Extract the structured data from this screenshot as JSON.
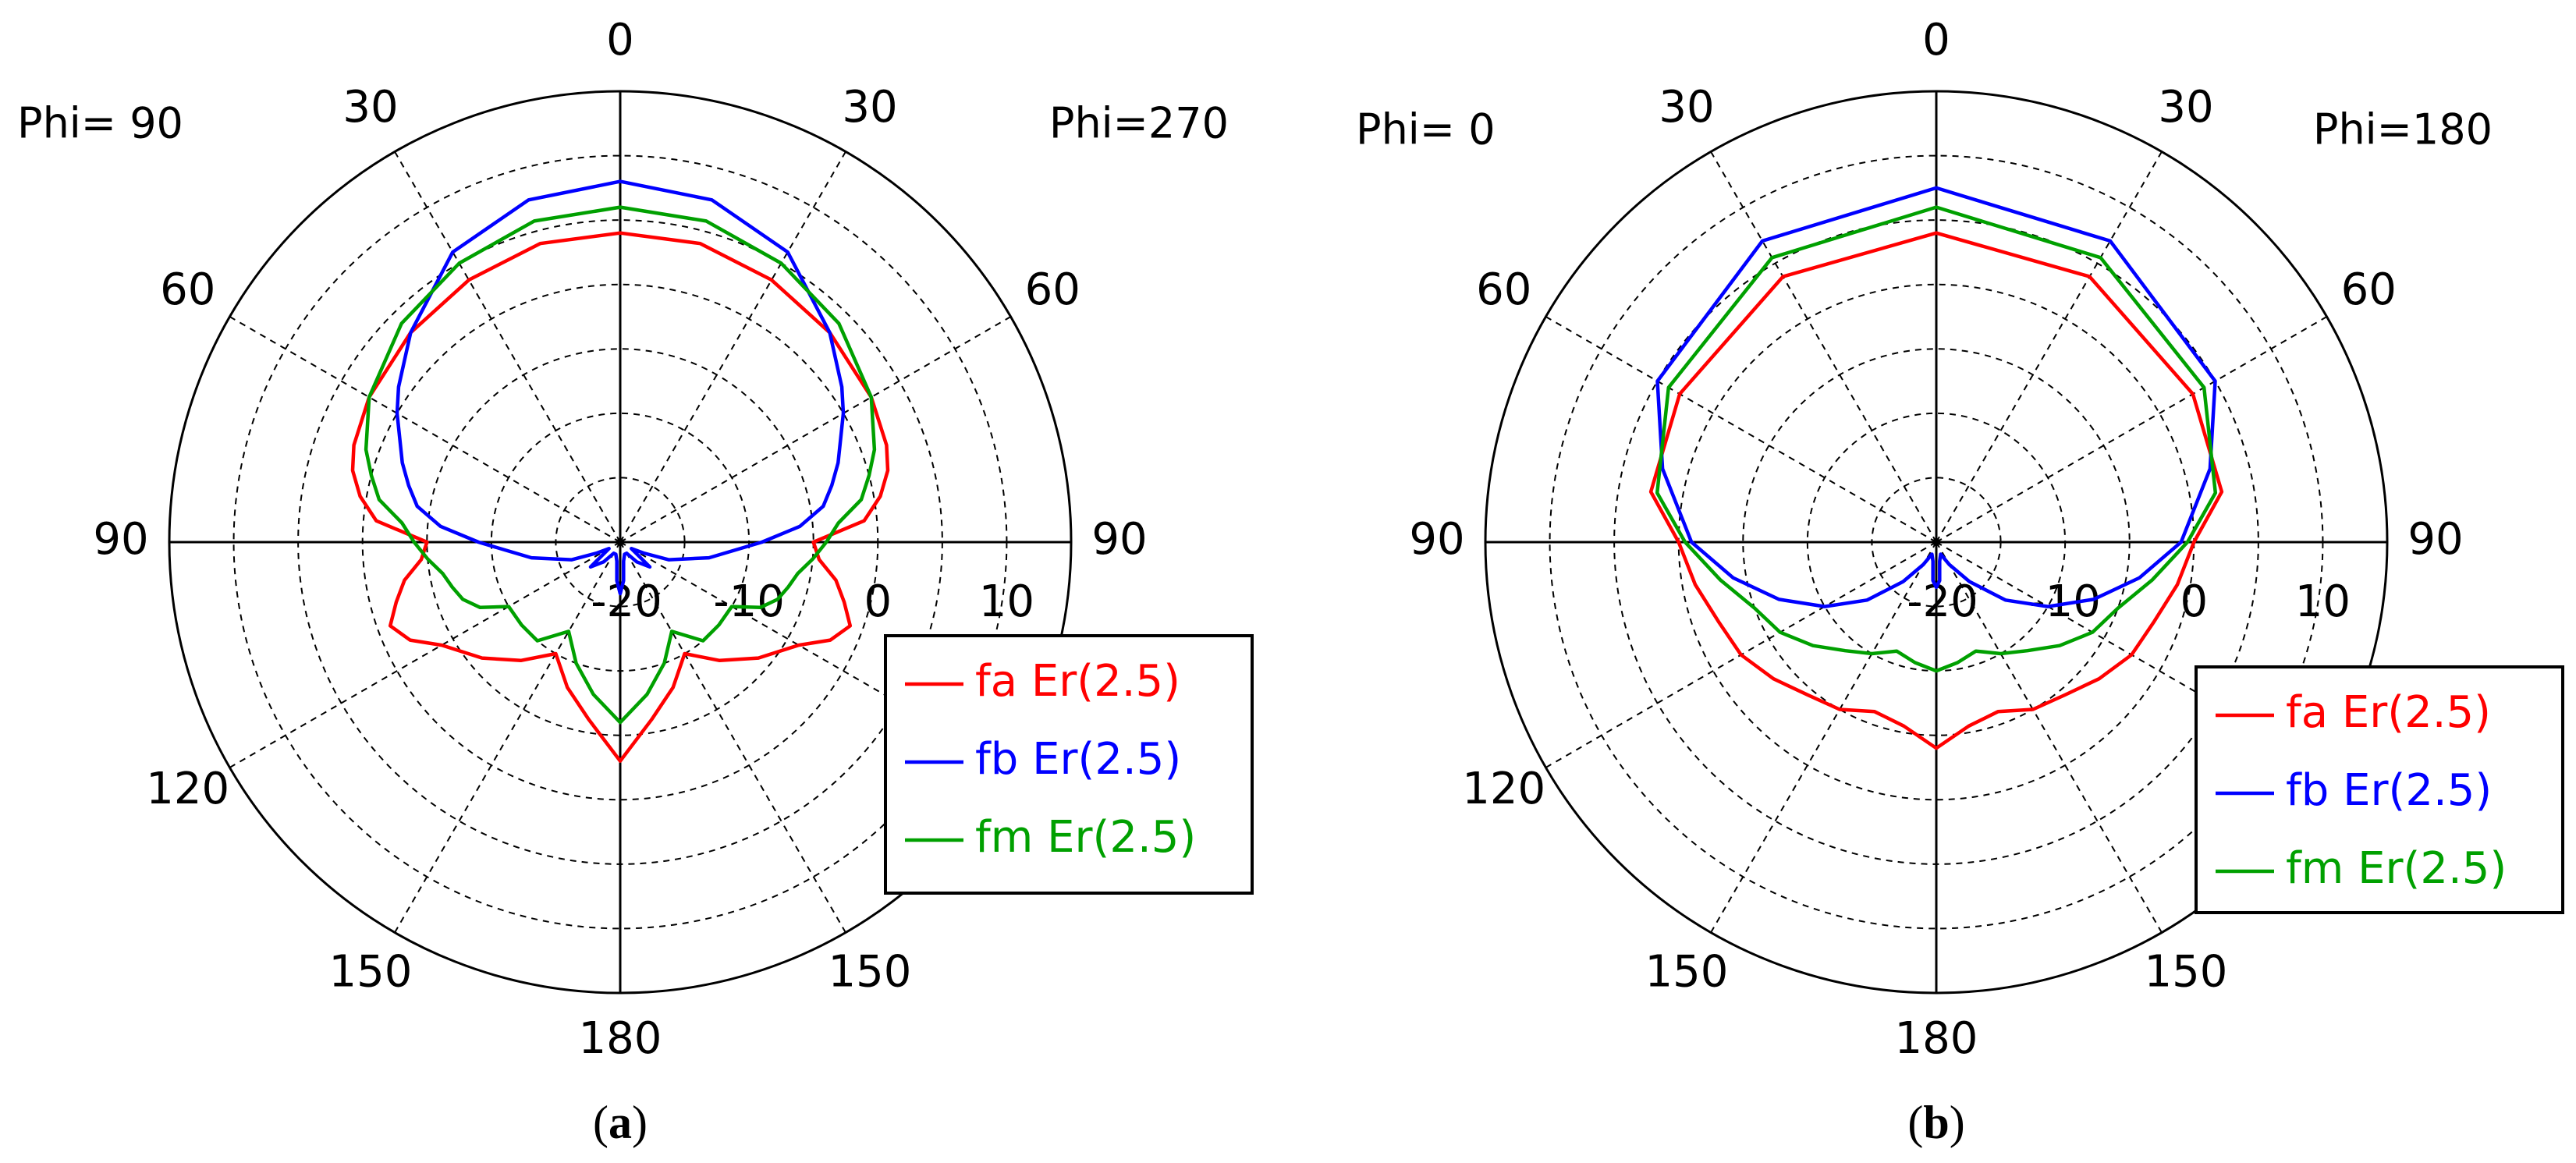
{
  "colors": {
    "fa": "#ff0000",
    "fb": "#0000ff",
    "fm": "#00a000",
    "grid": "#000000"
  },
  "chart_data": [
    {
      "type": "polar",
      "caption_paren_left": "(",
      "caption_letter": "a",
      "caption_paren_right": ")",
      "phi_left": "Phi= 90",
      "phi_right": "Phi=270",
      "angle_labels": {
        "top": "0",
        "left30": "30",
        "right30": "30",
        "left60": "60",
        "right60": "60",
        "left90": "90",
        "right90": "90",
        "left120": "120",
        "left150": "150",
        "right150": "150",
        "bottom": "180"
      },
      "radial_tick_labels": [
        "-20",
        "-10",
        "0",
        "10"
      ],
      "radial_range": [
        -20,
        15
      ],
      "grid": true,
      "legend_position": "bottom-right",
      "series": [
        {
          "name": "fa Er(2.5)",
          "color_key": "fa",
          "theta": [
            0,
            15,
            30,
            45,
            60,
            70,
            75,
            80,
            85,
            90,
            95,
            100,
            105,
            110,
            115,
            120,
            130,
            140,
            150,
            160,
            170,
            180
          ],
          "values": [
            4,
            4,
            3.5,
            3,
            2.5,
            2,
            1.5,
            0.5,
            -1,
            -5,
            -4.5,
            -3,
            -2,
            -1,
            -2,
            -4,
            -6,
            -8,
            -10,
            -8,
            -6,
            -3
          ]
        },
        {
          "name": "fb Er(2.5)",
          "color_key": "fb",
          "theta": [
            0,
            15,
            30,
            45,
            55,
            60,
            70,
            75,
            80,
            85,
            90,
            100,
            110,
            115,
            120,
            130,
            140,
            150,
            160,
            170,
            175,
            180
          ],
          "values": [
            8,
            7.5,
            6,
            3,
            1,
            0,
            -2,
            -3,
            -4,
            -6,
            -9,
            -13,
            -16,
            -18,
            -19,
            -17,
            -18,
            -19,
            -19,
            -18.5,
            -17,
            -16
          ]
        },
        {
          "name": "fm Er(2.5)",
          "color_key": "fm",
          "theta": [
            0,
            15,
            30,
            45,
            60,
            70,
            75,
            80,
            85,
            90,
            95,
            100,
            105,
            110,
            115,
            120,
            130,
            140,
            150,
            160,
            170,
            180
          ],
          "values": [
            6,
            5.8,
            5,
            4,
            2.5,
            1,
            0,
            -1,
            -3,
            -4,
            -5,
            -6,
            -6.5,
            -7,
            -8,
            -10,
            -10,
            -10,
            -12,
            -10,
            -8,
            -6
          ]
        }
      ]
    },
    {
      "type": "polar",
      "caption_paren_left": "(",
      "caption_letter": "b",
      "caption_paren_right": ")",
      "phi_left": "Phi=  0",
      "phi_right": "Phi=180",
      "angle_labels": {
        "top": "0",
        "left30": "30",
        "right30": "30",
        "left60": "60",
        "right60": "60",
        "left90": "90",
        "right90": "90",
        "left120": "120",
        "left150": "150",
        "right150": "150",
        "bottom": "180"
      },
      "radial_tick_labels": [
        "-20",
        "-10",
        "0",
        "10"
      ],
      "radial_range": [
        -20,
        15
      ],
      "grid": true,
      "legend_position": "bottom-right",
      "series": [
        {
          "name": "fa Er(2.5)",
          "color_key": "fa",
          "theta": [
            0,
            30,
            60,
            80,
            90,
            100,
            110,
            120,
            130,
            140,
            150,
            160,
            170,
            180
          ],
          "values": [
            4,
            3.8,
            3,
            2.5,
            0,
            -1,
            -2,
            -2.5,
            -3.5,
            -4.5,
            -5,
            -6,
            -5.5,
            -4
          ]
        },
        {
          "name": "fb Er(2.5)",
          "color_key": "fb",
          "theta": [
            0,
            30,
            60,
            75,
            90,
            100,
            110,
            120,
            130,
            140,
            150,
            160,
            170,
            175,
            180
          ],
          "values": [
            7.5,
            7,
            5,
            2,
            -1,
            -4,
            -7,
            -10,
            -13,
            -16,
            -18,
            -19,
            -18.5,
            -17,
            -16.5
          ]
        },
        {
          "name": "fm Er(2.5)",
          "color_key": "fm",
          "theta": [
            0,
            30,
            60,
            80,
            90,
            100,
            110,
            120,
            130,
            140,
            150,
            160,
            170,
            180
          ],
          "values": [
            6,
            5.5,
            4,
            2,
            -0.5,
            -3,
            -5,
            -6,
            -7.5,
            -9,
            -10,
            -11,
            -10.5,
            -10
          ]
        }
      ]
    }
  ]
}
